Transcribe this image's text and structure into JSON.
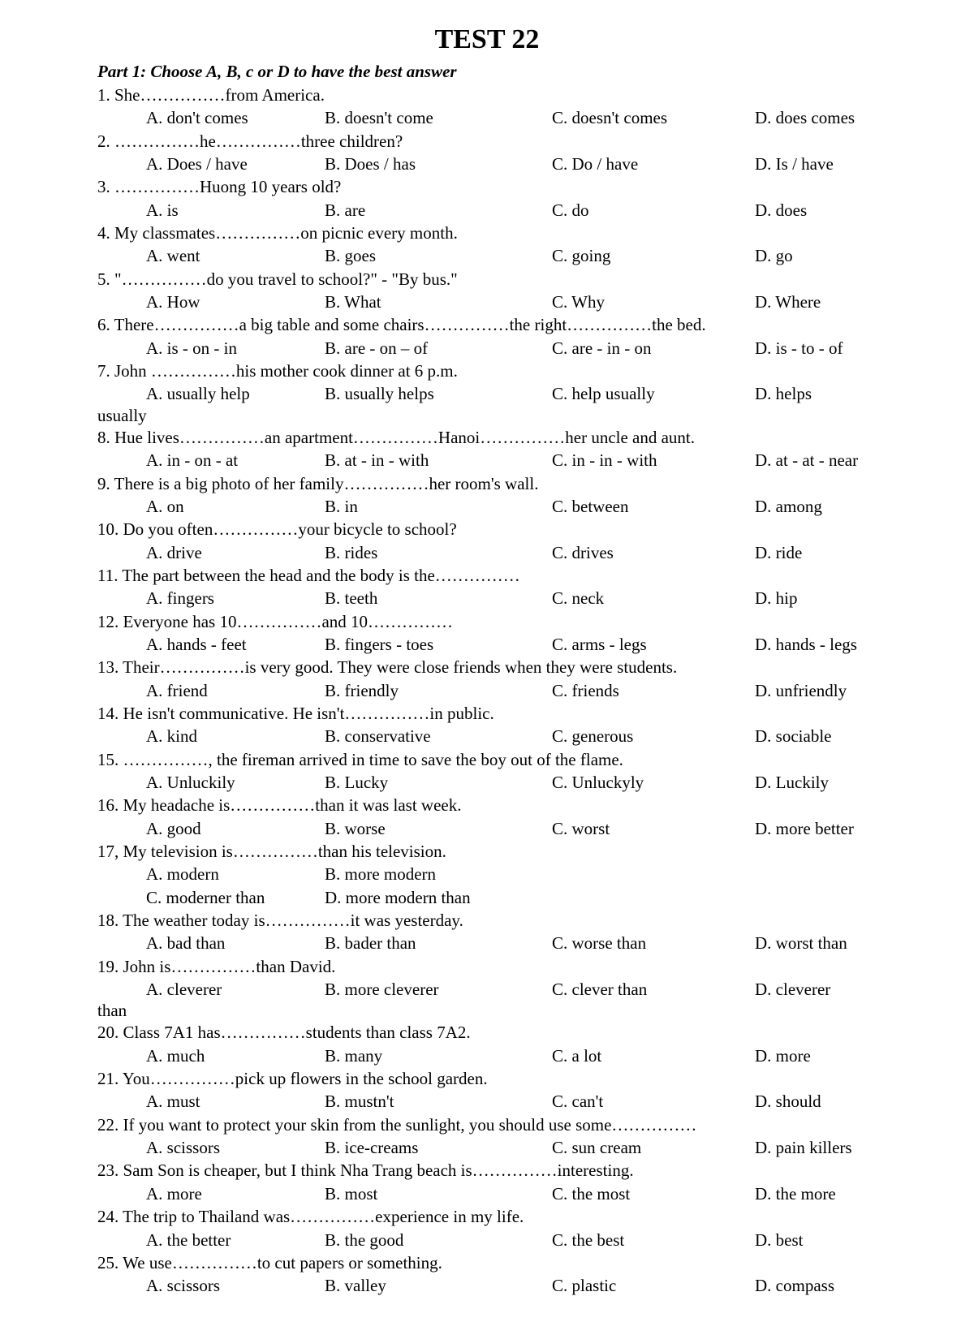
{
  "title": "TEST 22",
  "instructions": "Part 1: Choose A, B, c or D to have the best answer",
  "questions": [
    {
      "num": "1",
      "text": "She……………from America.",
      "options": [
        "don't comes",
        "doesn't come",
        "doesn't comes",
        "does comes"
      ]
    },
    {
      "num": "2",
      "text": "……………he……………three children?",
      "options": [
        "Does / have",
        "Does / has",
        "Do / have",
        "Is / have"
      ]
    },
    {
      "num": "3",
      "text": "……………Huong 10 years old?",
      "options": [
        "is",
        "are",
        "do",
        "does"
      ]
    },
    {
      "num": "4",
      "text": "My classmates……………on picnic every month.",
      "options": [
        "went",
        "goes",
        "going",
        "go"
      ]
    },
    {
      "num": "5",
      "text": "\"……………do you travel to school?\" - \"By bus.\"",
      "options": [
        "How",
        "What",
        "Why",
        "Where"
      ]
    },
    {
      "num": "6",
      "text": "There……………a big table and some chairs……………the right……………the bed.",
      "options": [
        "is - on - in",
        "are - on – of",
        "are - in - on",
        "is - to - of"
      ]
    },
    {
      "num": "7",
      "text": "John ……………his mother cook dinner at 6 p.m.",
      "options": [
        "usually help",
        "usually helps",
        "help usually",
        "helps"
      ],
      "continuation": "usually"
    },
    {
      "num": "8",
      "text": "Hue lives……………an apartment……………Hanoi……………her uncle and aunt.",
      "options": [
        "in - on - at",
        "at - in - with",
        "in - in - with",
        "at - at - near"
      ]
    },
    {
      "num": "9",
      "text": "There is a big photo of her family……………her room's wall.",
      "options": [
        "on",
        "in",
        "between",
        "among"
      ]
    },
    {
      "num": "10",
      "text": "Do you often……………your bicycle to school?",
      "options": [
        "drive",
        "rides",
        "drives",
        "ride"
      ]
    },
    {
      "num": "11",
      "text": "The part between the head and the body is the……………",
      "options": [
        "fingers",
        "teeth",
        "neck",
        "hip"
      ]
    },
    {
      "num": "12",
      "text": "Everyone has 10……………and 10……………",
      "options": [
        "hands - feet",
        "fingers - toes",
        "arms - legs",
        "hands - legs"
      ]
    },
    {
      "num": "13",
      "text": "Their……………is very good. They were close friends when they were students.",
      "options": [
        "friend",
        "friendly",
        "friends",
        "unfriendly"
      ]
    },
    {
      "num": "14",
      "text": "He isn't communicative. He isn't……………in public.",
      "options": [
        "kind",
        "conservative",
        "generous",
        "sociable"
      ]
    },
    {
      "num": "15",
      "text": "……………, the fireman arrived in time to save the boy out of the flame.",
      "options": [
        "Unluckily",
        "Lucky",
        "Unluckyly",
        "Luckily"
      ]
    },
    {
      "num": "16",
      "text": "My headache is……………than it was last week.",
      "options": [
        "good",
        "worse",
        "worst",
        "more better"
      ]
    },
    {
      "num": "17",
      "text": "My television is……………than his television.",
      "options_2x2": [
        [
          "modern",
          "more modern"
        ],
        [
          "moderner than",
          "more modern than"
        ]
      ],
      "separator": ","
    },
    {
      "num": "18",
      "text": "The weather today is……………it was yesterday.",
      "options": [
        "bad than",
        "bader than",
        "worse than",
        "worst than"
      ]
    },
    {
      "num": "19",
      "text": "John is……………than David.",
      "options": [
        "cleverer",
        "more cleverer",
        "clever than",
        "cleverer"
      ],
      "continuation": "than"
    },
    {
      "num": "20",
      "text": "Class 7A1 has……………students than class 7A2.",
      "options": [
        "much",
        "many",
        "a lot",
        "more"
      ]
    },
    {
      "num": "21",
      "text": "You……………pick up flowers in the school garden.",
      "options": [
        "must",
        "mustn't",
        "can't",
        "should"
      ]
    },
    {
      "num": "22",
      "text": "If you want to protect your skin from the sunlight, you should use some……………",
      "options": [
        "scissors",
        "ice-creams",
        "sun cream",
        "pain killers"
      ]
    },
    {
      "num": "23",
      "text": "Sam Son is cheaper, but I think Nha Trang beach is……………interesting.",
      "options": [
        "more",
        "most",
        "the most",
        "the more"
      ]
    },
    {
      "num": "24",
      "text": "The trip to Thailand was……………experience in my life.",
      "options": [
        "the better",
        "the good",
        "the best",
        "best"
      ]
    },
    {
      "num": "25",
      "text": "We use……………to cut papers or something.",
      "options": [
        "scissors",
        "valley",
        "plastic",
        "compass"
      ]
    }
  ],
  "letters": [
    "A",
    "B",
    "C",
    "D"
  ]
}
